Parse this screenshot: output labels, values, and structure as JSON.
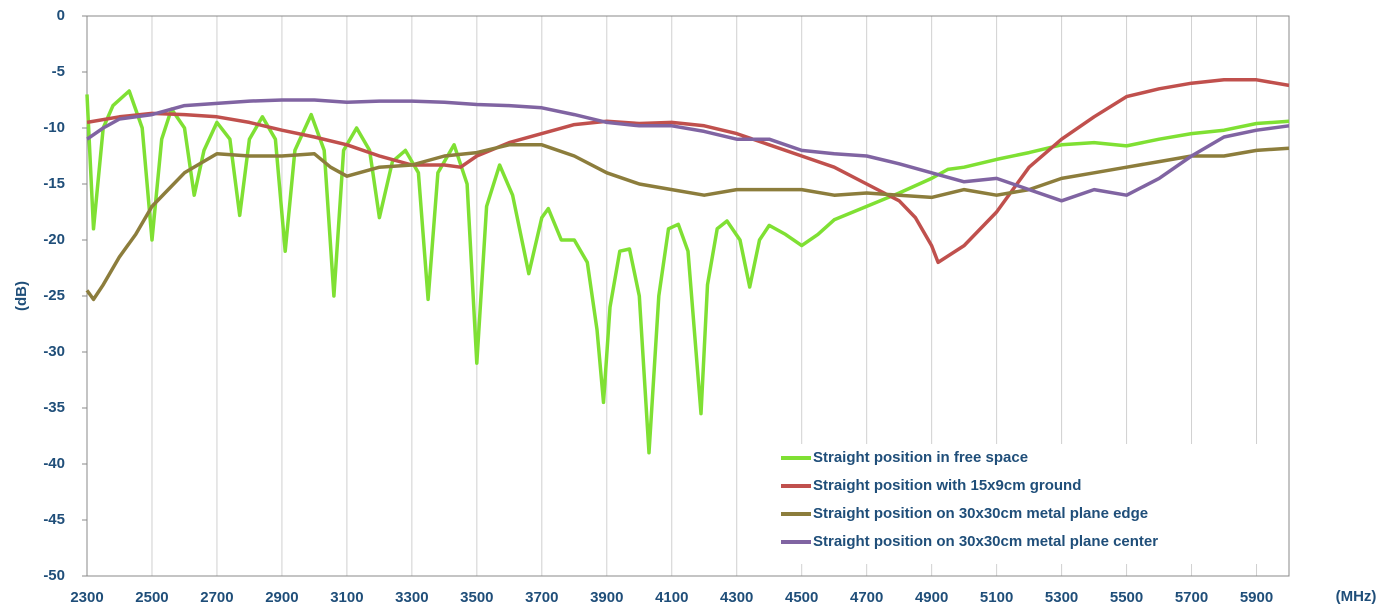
{
  "chart_data": {
    "type": "line",
    "ylabel": "(dB)",
    "xlabel": "(MHz)",
    "xlim": [
      2300,
      6000
    ],
    "xticks": [
      2300,
      2500,
      2700,
      2900,
      3100,
      3300,
      3500,
      3700,
      3900,
      4100,
      4300,
      4500,
      4700,
      4900,
      5100,
      5300,
      5500,
      5700,
      5900
    ],
    "ylim": [
      -50,
      0
    ],
    "yticks": [
      0,
      -5,
      -10,
      -15,
      -20,
      -25,
      -30,
      -35,
      -40,
      -45,
      -50
    ],
    "grid": "x",
    "legend": "lower right",
    "series": [
      {
        "name": "Straight position in free space",
        "color": "#7fe033",
        "x": [
          2300,
          2320,
          2350,
          2380,
          2430,
          2470,
          2500,
          2530,
          2560,
          2600,
          2630,
          2660,
          2700,
          2740,
          2770,
          2800,
          2840,
          2880,
          2910,
          2940,
          2990,
          3030,
          3060,
          3090,
          3130,
          3170,
          3200,
          3240,
          3280,
          3320,
          3350,
          3380,
          3430,
          3470,
          3500,
          3530,
          3570,
          3610,
          3660,
          3700,
          3720,
          3760,
          3800,
          3840,
          3870,
          3890,
          3910,
          3940,
          3970,
          4000,
          4030,
          4060,
          4090,
          4120,
          4150,
          4190,
          4210,
          4240,
          4270,
          4310,
          4340,
          4370,
          4400,
          4450,
          4500,
          4550,
          4600,
          4700,
          4800,
          4900,
          4950,
          5000,
          5100,
          5200,
          5300,
          5400,
          5500,
          5600,
          5700,
          5800,
          5900,
          6000
        ],
        "values": [
          -7,
          -19,
          -10,
          -8,
          -6.7,
          -10,
          -20,
          -11,
          -8.3,
          -10,
          -16,
          -12,
          -9.5,
          -11,
          -17.8,
          -11,
          -9,
          -11,
          -21,
          -12,
          -8.8,
          -12,
          -25,
          -12,
          -10,
          -12,
          -18,
          -13,
          -12,
          -14,
          -25.3,
          -14,
          -11.5,
          -15,
          -31,
          -17,
          -13.3,
          -16,
          -23,
          -18,
          -17.2,
          -20,
          -20,
          -22,
          -28,
          -34.5,
          -26,
          -21,
          -20.8,
          -25,
          -39,
          -25,
          -19,
          -18.6,
          -21,
          -35.5,
          -24,
          -19,
          -18.3,
          -20,
          -24.2,
          -20,
          -18.7,
          -19.5,
          -20.5,
          -19.5,
          -18.2,
          -17,
          -15.8,
          -14.5,
          -13.7,
          -13.5,
          -12.8,
          -12.2,
          -11.5,
          -11.3,
          -11.6,
          -11,
          -10.5,
          -10.2,
          -9.6,
          -9.4
        ]
      },
      {
        "name": "Straight position with 15x9cm ground",
        "color": "#c0504d",
        "x": [
          2300,
          2400,
          2500,
          2600,
          2700,
          2800,
          2900,
          3000,
          3100,
          3200,
          3300,
          3400,
          3450,
          3500,
          3600,
          3700,
          3800,
          3900,
          4000,
          4100,
          4200,
          4300,
          4400,
          4500,
          4600,
          4700,
          4800,
          4850,
          4900,
          4920,
          5000,
          5100,
          5200,
          5300,
          5400,
          5500,
          5600,
          5700,
          5800,
          5900,
          6000
        ],
        "values": [
          -9.5,
          -9,
          -8.7,
          -8.8,
          -9,
          -9.5,
          -10.2,
          -10.8,
          -11.5,
          -12.5,
          -13.3,
          -13.3,
          -13.5,
          -12.5,
          -11.3,
          -10.5,
          -9.7,
          -9.4,
          -9.6,
          -9.5,
          -9.8,
          -10.5,
          -11.5,
          -12.5,
          -13.5,
          -15,
          -16.5,
          -18,
          -20.5,
          -22,
          -20.5,
          -17.5,
          -13.5,
          -11,
          -9,
          -7.2,
          -6.5,
          -6,
          -5.7,
          -5.7,
          -6.2
        ]
      },
      {
        "name": "Straight position on 30x30cm metal plane edge",
        "color": "#8c7d3c",
        "x": [
          2300,
          2320,
          2350,
          2400,
          2450,
          2500,
          2550,
          2600,
          2700,
          2800,
          2900,
          3000,
          3050,
          3100,
          3200,
          3300,
          3400,
          3500,
          3600,
          3700,
          3800,
          3900,
          4000,
          4100,
          4200,
          4300,
          4400,
          4500,
          4600,
          4700,
          4800,
          4900,
          5000,
          5100,
          5200,
          5300,
          5400,
          5500,
          5600,
          5700,
          5800,
          5900,
          6000
        ],
        "values": [
          -24.5,
          -25.3,
          -24,
          -21.5,
          -19.5,
          -17,
          -15.5,
          -14,
          -12.3,
          -12.5,
          -12.5,
          -12.3,
          -13.5,
          -14.3,
          -13.5,
          -13.3,
          -12.5,
          -12.2,
          -11.5,
          -11.5,
          -12.5,
          -14,
          -15,
          -15.5,
          -16,
          -15.5,
          -15.5,
          -15.5,
          -16,
          -15.8,
          -16,
          -16.2,
          -15.5,
          -16,
          -15.5,
          -14.5,
          -14,
          -13.5,
          -13,
          -12.5,
          -12.5,
          -12,
          -11.8
        ]
      },
      {
        "name": "Straight position on 30x30cm metal plane center",
        "color": "#8064a2",
        "x": [
          2300,
          2350,
          2400,
          2500,
          2600,
          2700,
          2800,
          2900,
          3000,
          3100,
          3200,
          3300,
          3400,
          3500,
          3600,
          3700,
          3800,
          3900,
          4000,
          4100,
          4200,
          4300,
          4400,
          4500,
          4600,
          4700,
          4800,
          4900,
          5000,
          5100,
          5200,
          5300,
          5400,
          5500,
          5600,
          5700,
          5800,
          5900,
          6000
        ],
        "values": [
          -11,
          -10,
          -9.2,
          -8.8,
          -8,
          -7.8,
          -7.6,
          -7.5,
          -7.5,
          -7.7,
          -7.6,
          -7.6,
          -7.7,
          -7.9,
          -8,
          -8.2,
          -8.8,
          -9.5,
          -9.8,
          -9.8,
          -10.3,
          -11,
          -11,
          -12,
          -12.3,
          -12.5,
          -13.2,
          -14,
          -14.8,
          -14.5,
          -15.5,
          -16.5,
          -15.5,
          -16,
          -14.5,
          -12.5,
          -10.8,
          -10.2,
          -9.8
        ]
      }
    ]
  }
}
